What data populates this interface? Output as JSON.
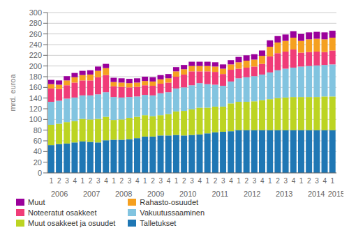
{
  "chart_data": {
    "type": "bar",
    "stacked": true,
    "ylabel": "mrd. euroa",
    "ylim": [
      0,
      300
    ],
    "yticks": [
      0,
      20,
      40,
      60,
      80,
      100,
      120,
      140,
      160,
      180,
      200,
      220,
      240,
      260,
      280,
      300
    ],
    "grid": true,
    "legend": "bottom",
    "categories": [
      "1",
      "2",
      "3",
      "4",
      "1",
      "2",
      "3",
      "4",
      "1",
      "2",
      "3",
      "4",
      "1",
      "2",
      "3",
      "4",
      "1",
      "2",
      "3",
      "4",
      "1",
      "2",
      "3",
      "4",
      "1",
      "2",
      "3",
      "4",
      "1",
      "2",
      "3",
      "4",
      "1",
      "2",
      "3",
      "4",
      "1"
    ],
    "series": [
      {
        "name": "Talletukset",
        "color": "#1f77b4",
        "values": [
          52,
          54,
          55,
          57,
          59,
          58,
          57,
          61,
          62,
          62,
          63,
          65,
          68,
          68,
          70,
          70,
          71,
          70,
          71,
          72,
          74,
          76,
          77,
          78,
          80,
          80,
          80,
          80,
          80,
          80,
          80,
          80,
          80,
          80,
          80,
          80,
          80
        ]
      },
      {
        "name": "Muut osakkeet ja osuudet",
        "color": "#bcd422",
        "values": [
          38,
          38,
          40,
          40,
          42,
          42,
          44,
          44,
          37,
          38,
          40,
          40,
          40,
          38,
          38,
          40,
          44,
          46,
          48,
          50,
          48,
          48,
          47,
          52,
          53,
          53,
          54,
          56,
          58,
          60,
          61,
          62,
          62,
          62,
          62,
          63,
          63
        ]
      },
      {
        "name": "Vakuutussaaminen",
        "color": "#82c4e0",
        "values": [
          43,
          43,
          44,
          44,
          44,
          45,
          46,
          46,
          43,
          41,
          39,
          38,
          38,
          39,
          41,
          41,
          43,
          44,
          45,
          46,
          44,
          41,
          39,
          41,
          44,
          46,
          47,
          48,
          50,
          52,
          54,
          55,
          57,
          58,
          59,
          59,
          60
        ]
      },
      {
        "name": "Noteeratut osakkeet",
        "color": "#f03c78",
        "values": [
          25,
          22,
          25,
          28,
          28,
          28,
          32,
          32,
          20,
          20,
          18,
          18,
          18,
          18,
          18,
          18,
          22,
          24,
          26,
          22,
          24,
          24,
          22,
          22,
          18,
          18,
          18,
          20,
          30,
          32,
          32,
          34,
          26,
          26,
          26,
          24,
          26
        ]
      },
      {
        "name": "Rahasto-osuudet",
        "color": "#f5a020",
        "values": [
          8,
          8,
          9,
          10,
          10,
          11,
          12,
          13,
          8,
          8,
          8,
          8,
          8,
          8,
          8,
          8,
          10,
          10,
          10,
          10,
          10,
          10,
          10,
          10,
          12,
          13,
          13,
          15,
          18,
          20,
          20,
          22,
          22,
          24,
          24,
          24,
          24
        ]
      },
      {
        "name": "Muut",
        "color": "#9b009b",
        "values": [
          8,
          8,
          8,
          8,
          8,
          8,
          8,
          8,
          8,
          8,
          8,
          8,
          8,
          8,
          8,
          8,
          8,
          8,
          8,
          8,
          8,
          8,
          8,
          8,
          10,
          10,
          10,
          10,
          12,
          12,
          12,
          12,
          13,
          13,
          13,
          13,
          13
        ]
      }
    ],
    "annotations": [
      {
        "text": "2006",
        "x": 1.5
      },
      {
        "text": "2007",
        "x": 5.5
      },
      {
        "text": "2008",
        "x": 9.5
      },
      {
        "text": "2009",
        "x": 13.5
      },
      {
        "text": "2010",
        "x": 17.5
      },
      {
        "text": "2011",
        "x": 21.5
      },
      {
        "text": "2012",
        "x": 25.5
      },
      {
        "text": "2013",
        "x": 29.5
      },
      {
        "text": "2014",
        "x": 33.5
      },
      {
        "text": "2015",
        "x": 36.0
      }
    ]
  }
}
